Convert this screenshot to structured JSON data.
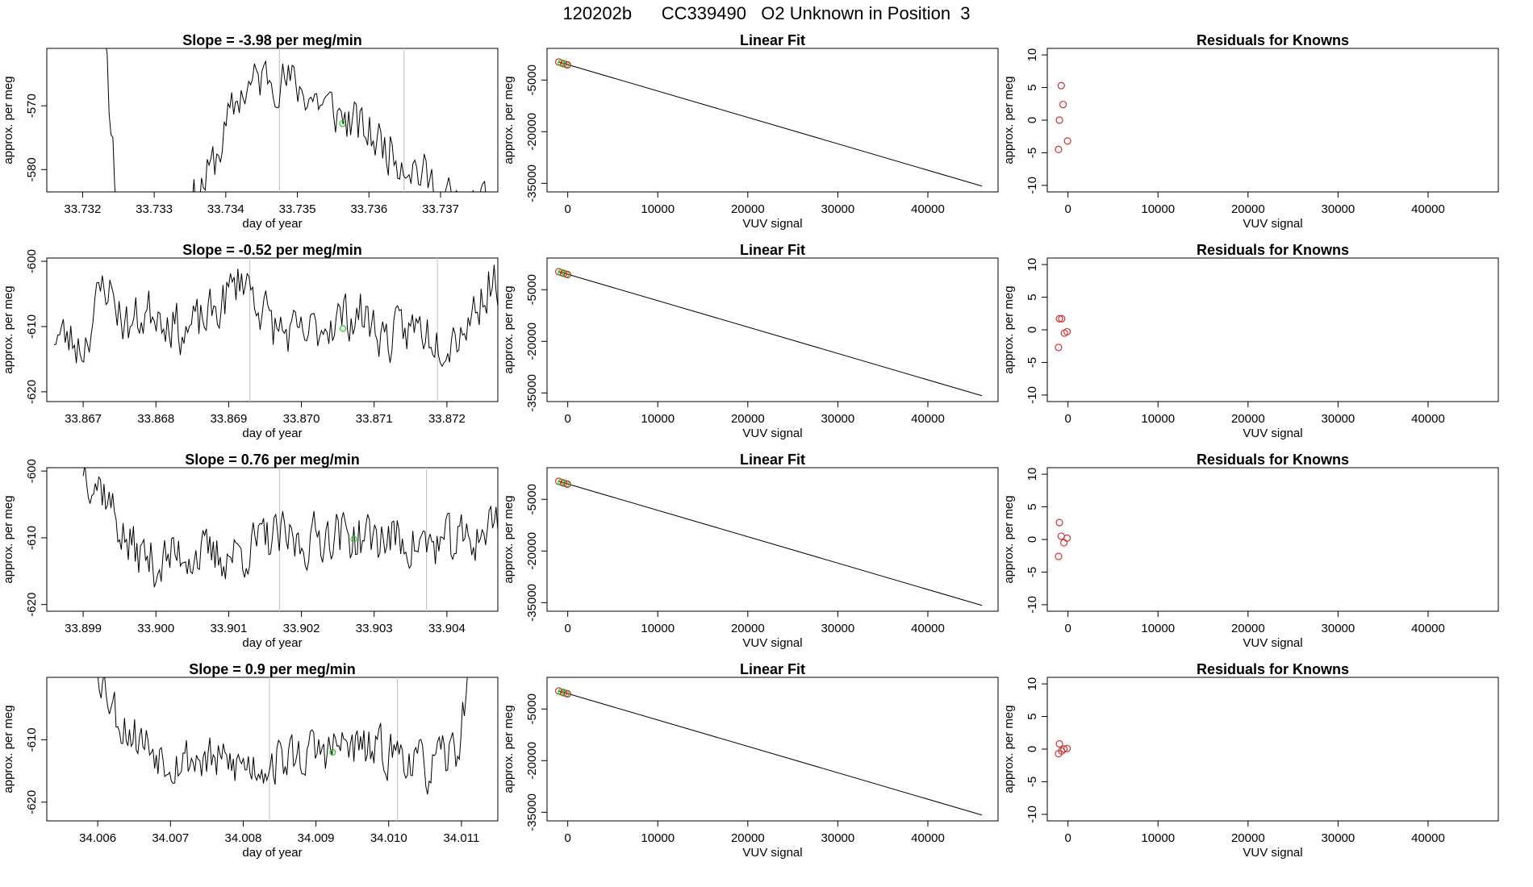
{
  "figure_title": "120202b      CC339490   O2 Unknown in Position  3",
  "colors": {
    "line": "#000000",
    "marker_green": "#22cc22",
    "marker_red": "#cc3333",
    "vertical_marker": "#c8c8c8"
  },
  "chart_data": [
    {
      "type": "line",
      "title": "Slope =  -3.98  per meg/min",
      "xlabel": "day of year",
      "ylabel": "approx. per meg",
      "xlim": [
        33.7315,
        33.7378
      ],
      "ylim": [
        -583.5,
        -561
      ],
      "xticks": [
        "33.732",
        "33.733",
        "33.734",
        "33.735",
        "33.736",
        "33.737"
      ],
      "yticks": [
        "-570",
        "-580"
      ],
      "vlines": [
        33.73475,
        33.73649
      ],
      "green_point": {
        "x": 33.73563,
        "y": -572.8
      },
      "series_seed": 11,
      "anchors": [
        [
          33.7315,
          -540
        ],
        [
          33.73226,
          -555
        ],
        [
          33.73245,
          -580
        ],
        [
          33.7326,
          -600
        ],
        [
          33.7328,
          -605
        ],
        [
          33.7331,
          -598
        ],
        [
          33.7334,
          -588
        ],
        [
          33.7338,
          -580
        ],
        [
          33.7342,
          -568
        ],
        [
          33.7346,
          -565
        ],
        [
          33.735,
          -567
        ],
        [
          33.7354,
          -570
        ],
        [
          33.7358,
          -573
        ],
        [
          33.7362,
          -576
        ],
        [
          33.7366,
          -579
        ],
        [
          33.737,
          -584
        ],
        [
          33.7374,
          -587
        ],
        [
          33.7378,
          -586
        ]
      ]
    },
    {
      "type": "scatter+line",
      "title": "Linear Fit",
      "xlabel": "VUV signal",
      "ylabel": "approx. per meg",
      "xlim": [
        -2300,
        47800
      ],
      "ylim": [
        -37500,
        4200
      ],
      "xticks": [
        "0",
        "10000",
        "20000",
        "30000",
        "40000"
      ],
      "yticks": [
        "-5000",
        "-20000",
        "-35000"
      ],
      "fit_line": [
        [
          -1000,
          250
        ],
        [
          46000,
          -35800
        ]
      ],
      "points": [
        [
          -1000,
          250
        ],
        [
          -700,
          -50
        ],
        [
          -450,
          -250
        ],
        [
          -200,
          -450
        ],
        [
          -20,
          -600
        ]
      ]
    },
    {
      "type": "scatter",
      "title": "Residuals for Knowns",
      "xlabel": "VUV signal",
      "ylabel": "approx. per meg",
      "xlim": [
        -2300,
        47800
      ],
      "ylim": [
        -11,
        11
      ],
      "xticks": [
        "0",
        "10000",
        "20000",
        "30000",
        "40000"
      ],
      "yticks": [
        "10",
        "5",
        "0",
        "-5",
        "-10"
      ],
      "points": [
        [
          -1050,
          -4.5
        ],
        [
          -950,
          0
        ],
        [
          -750,
          5.3
        ],
        [
          -550,
          2.4
        ],
        [
          -50,
          -3.2
        ]
      ]
    },
    {
      "type": "line",
      "title": "Slope =  -0.52  per meg/min",
      "xlabel": "day of year",
      "ylabel": "approx. per meg",
      "xlim": [
        33.8665,
        33.8727
      ],
      "ylim": [
        -621.5,
        -599.5
      ],
      "xticks": [
        "33.867",
        "33.868",
        "33.869",
        "33.870",
        "33.871",
        "33.872"
      ],
      "yticks": [
        "-600",
        "-610",
        "-620"
      ],
      "vlines": [
        33.86929,
        33.87187
      ],
      "green_point": {
        "x": 33.87057,
        "y": -610.3
      },
      "series_seed": 23,
      "anchors": [
        [
          33.8666,
          -611
        ],
        [
          33.867,
          -613
        ],
        [
          33.8673,
          -603
        ],
        [
          33.8676,
          -610
        ],
        [
          33.868,
          -607
        ],
        [
          33.8684,
          -611
        ],
        [
          33.8688,
          -608
        ],
        [
          33.8692,
          -602
        ],
        [
          33.8696,
          -610
        ],
        [
          33.87,
          -612
        ],
        [
          33.8704,
          -609
        ],
        [
          33.8708,
          -608
        ],
        [
          33.8712,
          -612
        ],
        [
          33.8716,
          -610
        ],
        [
          33.872,
          -612
        ],
        [
          33.8723,
          -609
        ],
        [
          33.8726,
          -603
        ]
      ]
    },
    {
      "type": "scatter+line",
      "title": "Linear Fit",
      "xlabel": "VUV signal",
      "ylabel": "approx. per meg",
      "xlim": [
        -2300,
        47800
      ],
      "ylim": [
        -37500,
        4200
      ],
      "xticks": [
        "0",
        "10000",
        "20000",
        "30000",
        "40000"
      ],
      "yticks": [
        "-5000",
        "-20000",
        "-35000"
      ],
      "fit_line": [
        [
          -1000,
          250
        ],
        [
          46000,
          -35800
        ]
      ],
      "points": [
        [
          -1000,
          250
        ],
        [
          -700,
          -50
        ],
        [
          -450,
          -250
        ],
        [
          -200,
          -450
        ],
        [
          -20,
          -600
        ]
      ]
    },
    {
      "type": "scatter",
      "title": "Residuals for Knowns",
      "xlabel": "VUV signal",
      "ylabel": "approx. per meg",
      "xlim": [
        -2300,
        47800
      ],
      "ylim": [
        -11,
        11
      ],
      "xticks": [
        "0",
        "10000",
        "20000",
        "30000",
        "40000"
      ],
      "yticks": [
        "10",
        "5",
        "0",
        "-5",
        "-10"
      ],
      "points": [
        [
          -1050,
          -2.7
        ],
        [
          -950,
          1.7
        ],
        [
          -700,
          1.7
        ],
        [
          -400,
          -0.5
        ],
        [
          -100,
          -0.3
        ]
      ]
    },
    {
      "type": "line",
      "title": "Slope =  0.76  per meg/min",
      "xlabel": "day of year",
      "ylabel": "approx. per meg",
      "xlim": [
        33.8985,
        33.9047
      ],
      "ylim": [
        -621,
        -599.5
      ],
      "xticks": [
        "33.899",
        "33.900",
        "33.901",
        "33.902",
        "33.903",
        "33.904"
      ],
      "yticks": [
        "-600",
        "-610",
        "-620"
      ],
      "vlines": [
        33.9017,
        33.90372
      ],
      "green_point": {
        "x": 33.90272,
        "y": -610.2
      },
      "series_seed": 37,
      "anchors": [
        [
          33.899,
          -599
        ],
        [
          33.8993,
          -603
        ],
        [
          33.8996,
          -611
        ],
        [
          33.9,
          -614
        ],
        [
          33.9004,
          -612
        ],
        [
          33.9008,
          -613
        ],
        [
          33.9012,
          -612
        ],
        [
          33.9016,
          -610
        ],
        [
          33.902,
          -611
        ],
        [
          33.9024,
          -609
        ],
        [
          33.9028,
          -610
        ],
        [
          33.9032,
          -610
        ],
        [
          33.9036,
          -611
        ],
        [
          33.904,
          -611
        ],
        [
          33.9044,
          -610
        ],
        [
          33.9047,
          -607
        ]
      ]
    },
    {
      "type": "scatter+line",
      "title": "Linear Fit",
      "xlabel": "VUV signal",
      "ylabel": "approx. per meg",
      "xlim": [
        -2300,
        47800
      ],
      "ylim": [
        -37500,
        4200
      ],
      "xticks": [
        "0",
        "10000",
        "20000",
        "30000",
        "40000"
      ],
      "yticks": [
        "-5000",
        "-20000",
        "-35000"
      ],
      "fit_line": [
        [
          -1000,
          250
        ],
        [
          46000,
          -35800
        ]
      ],
      "points": [
        [
          -1000,
          250
        ],
        [
          -700,
          -50
        ],
        [
          -450,
          -250
        ],
        [
          -200,
          -450
        ],
        [
          -20,
          -600
        ]
      ]
    },
    {
      "type": "scatter",
      "title": "Residuals for Knowns",
      "xlabel": "VUV signal",
      "ylabel": "approx. per meg",
      "xlim": [
        -2300,
        47800
      ],
      "ylim": [
        -11,
        11
      ],
      "xticks": [
        "0",
        "10000",
        "20000",
        "30000",
        "40000"
      ],
      "yticks": [
        "10",
        "5",
        "0",
        "-5",
        "-10"
      ],
      "points": [
        [
          -1050,
          -2.6
        ],
        [
          -950,
          2.6
        ],
        [
          -750,
          0.5
        ],
        [
          -450,
          -0.5
        ],
        [
          -100,
          0.2
        ]
      ]
    },
    {
      "type": "line",
      "title": "Slope =  0.9  per meg/min",
      "xlabel": "day of year",
      "ylabel": "approx. per meg",
      "xlim": [
        34.0053,
        34.0115
      ],
      "ylim": [
        -623,
        -600
      ],
      "xticks": [
        "34.006",
        "34.007",
        "34.008",
        "34.009",
        "34.010",
        "34.011"
      ],
      "yticks": [
        "-610",
        "-620"
      ],
      "vlines": [
        34.00836,
        34.01012
      ],
      "green_point": {
        "x": 34.00923,
        "y": -612
      },
      "series_seed": 53,
      "anchors": [
        [
          34.006,
          -598
        ],
        [
          34.0063,
          -607
        ],
        [
          34.0066,
          -610
        ],
        [
          34.007,
          -613
        ],
        [
          34.0074,
          -613
        ],
        [
          34.0078,
          -614
        ],
        [
          34.0082,
          -614
        ],
        [
          34.0086,
          -613
        ],
        [
          34.009,
          -612
        ],
        [
          34.0094,
          -611
        ],
        [
          34.0098,
          -612
        ],
        [
          34.0102,
          -612
        ],
        [
          34.0105,
          -615
        ],
        [
          34.0108,
          -613
        ],
        [
          34.011,
          -610
        ],
        [
          34.0111,
          -595
        ]
      ]
    },
    {
      "type": "scatter+line",
      "title": "Linear Fit",
      "xlabel": "VUV signal",
      "ylabel": "approx. per meg",
      "xlim": [
        -2300,
        47800
      ],
      "ylim": [
        -37500,
        4200
      ],
      "xticks": [
        "0",
        "10000",
        "20000",
        "30000",
        "40000"
      ],
      "yticks": [
        "-5000",
        "-20000",
        "-35000"
      ],
      "fit_line": [
        [
          -1000,
          250
        ],
        [
          46000,
          -35800
        ]
      ],
      "points": [
        [
          -1000,
          250
        ],
        [
          -700,
          -50
        ],
        [
          -450,
          -250
        ],
        [
          -200,
          -450
        ],
        [
          -20,
          -600
        ]
      ]
    },
    {
      "type": "scatter",
      "title": "Residuals for Knowns",
      "xlabel": "VUV signal",
      "ylabel": "approx. per meg",
      "xlim": [
        -2300,
        47800
      ],
      "ylim": [
        -11,
        11
      ],
      "xticks": [
        "0",
        "10000",
        "20000",
        "30000",
        "40000"
      ],
      "yticks": [
        "10",
        "5",
        "0",
        "-5",
        "-10"
      ],
      "points": [
        [
          -1050,
          -0.7
        ],
        [
          -950,
          0.8
        ],
        [
          -700,
          -0.3
        ],
        [
          -450,
          0
        ],
        [
          -100,
          0.1
        ]
      ]
    }
  ]
}
